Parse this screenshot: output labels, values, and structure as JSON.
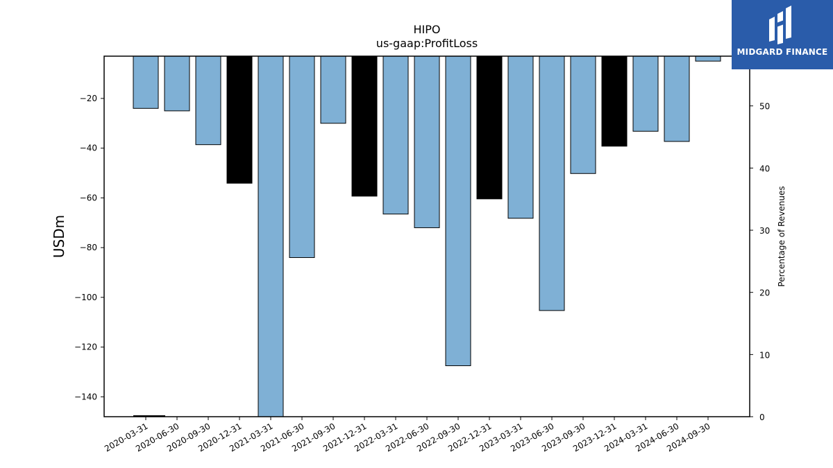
{
  "chart_data": {
    "type": "bar",
    "title": "HIPO",
    "subtitle": "us-gaap:ProfitLoss",
    "ylabel": "USDm",
    "y2label": "Percentage of Revenues",
    "ylim": [
      -148,
      -3
    ],
    "y2lim": [
      0,
      58
    ],
    "yticks": [
      -20,
      -40,
      -60,
      -80,
      -100,
      -120,
      -140
    ],
    "y2ticks": [
      0,
      10,
      20,
      30,
      40,
      50
    ],
    "categories": [
      "2020-03-31",
      "2020-06-30",
      "2020-09-30",
      "2020-12-31",
      "2021-03-31",
      "2021-06-30",
      "2021-09-30",
      "2021-12-31",
      "2022-03-31",
      "2022-06-30",
      "2022-09-30",
      "2022-12-31",
      "2023-03-31",
      "2023-06-30",
      "2023-09-30",
      "2023-12-31",
      "2024-03-31",
      "2024-06-30",
      "2024-09-30"
    ],
    "values": [
      -24.0,
      -25.0,
      -38.6,
      -54.1,
      -148.0,
      -84.0,
      -30.0,
      -59.3,
      -66.5,
      -72.0,
      -127.5,
      -60.4,
      -68.2,
      -105.3,
      -50.2,
      -39.2,
      -33.2,
      -37.3,
      -5.0
    ],
    "colors": [
      "#7fb0d5",
      "#7fb0d5",
      "#7fb0d5",
      "#000000",
      "#7fb0d5",
      "#7fb0d5",
      "#7fb0d5",
      "#000000",
      "#7fb0d5",
      "#7fb0d5",
      "#7fb0d5",
      "#000000",
      "#7fb0d5",
      "#7fb0d5",
      "#7fb0d5",
      "#000000",
      "#7fb0d5",
      "#7fb0d5",
      "#7fb0d5"
    ]
  },
  "logo": {
    "text": "MIDGARD FINANCE",
    "color": "#2a5caa"
  }
}
